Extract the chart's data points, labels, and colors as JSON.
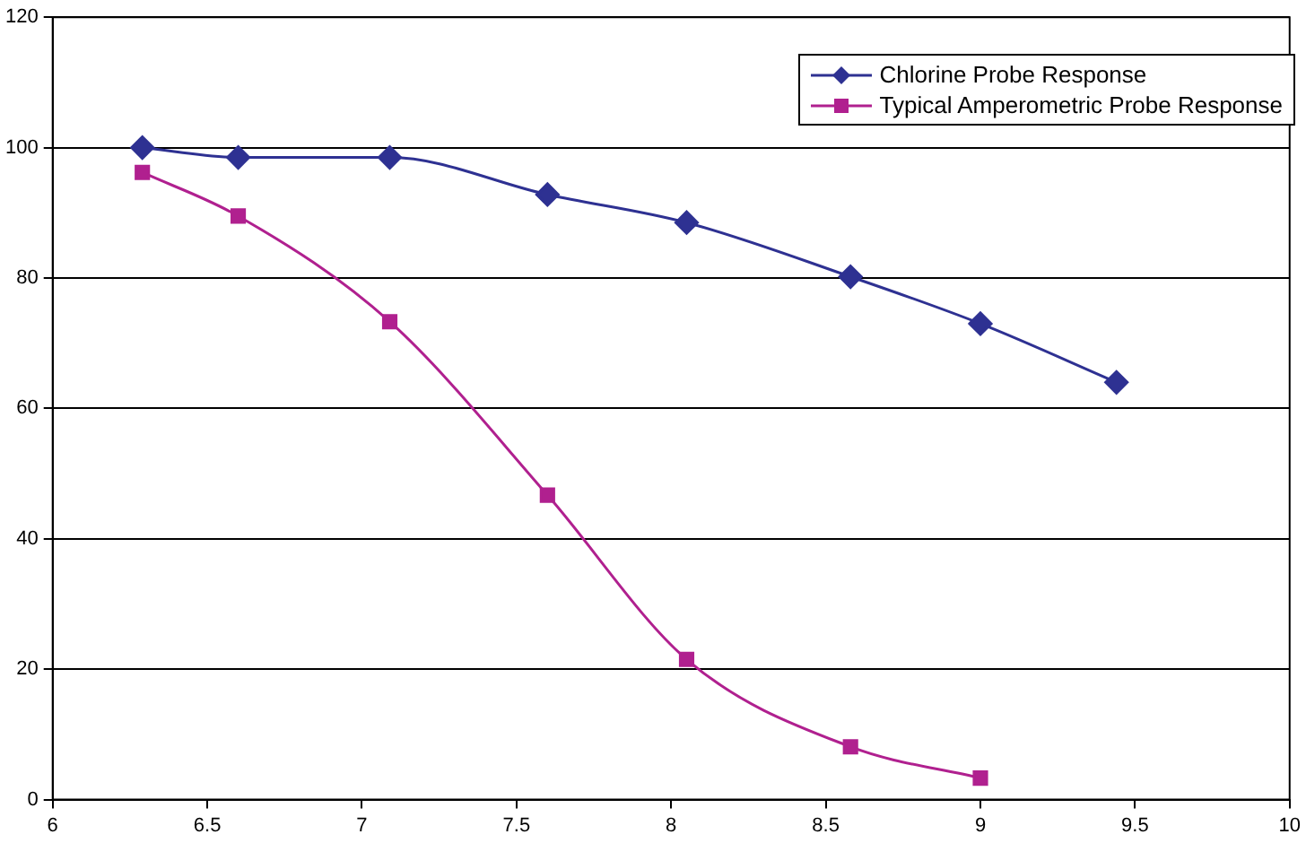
{
  "chart_data": {
    "type": "line",
    "xlim": [
      6,
      10
    ],
    "xticks": [
      6,
      6.5,
      7,
      7.5,
      8,
      8.5,
      9,
      9.5,
      10
    ],
    "ylim": [
      0,
      120
    ],
    "yticks": [
      0,
      20,
      40,
      60,
      80,
      100,
      120
    ],
    "grid": "y",
    "legend": "top right",
    "series": [
      {
        "name": "Chlorine Probe Response",
        "color": "#2e3192",
        "marker": "diamond",
        "x": [
          6.29,
          6.6,
          7.09,
          7.6,
          8.05,
          8.58,
          9.0,
          9.44
        ],
        "values": [
          100,
          98.5,
          98.5,
          92.8,
          88.5,
          80.2,
          73,
          64
        ]
      },
      {
        "name": "Typical Amperometric Probe Response",
        "color": "#b0208f",
        "marker": "square",
        "x": [
          6.29,
          6.6,
          7.09,
          7.6,
          8.05,
          8.58,
          9.0
        ],
        "values": [
          96.2,
          89.5,
          73.3,
          46.7,
          21.5,
          8.1,
          3.3
        ]
      }
    ]
  }
}
